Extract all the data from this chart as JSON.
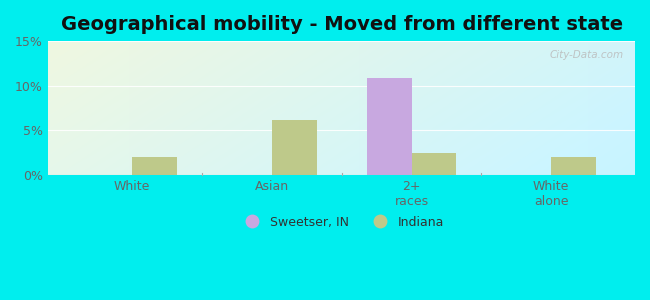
{
  "title": "Geographical mobility - Moved from different state",
  "categories": [
    "White",
    "Asian",
    "2+\nraces",
    "White\nalone"
  ],
  "sweetser_values": [
    0.0,
    0.0,
    10.9,
    0.0
  ],
  "indiana_values": [
    2.0,
    6.2,
    2.5,
    2.0
  ],
  "sweetser_color": "#c8a8e0",
  "indiana_color": "#bec98a",
  "ylim": [
    0,
    15
  ],
  "yticks": [
    0,
    5,
    10,
    15
  ],
  "yticklabels": [
    "0%",
    "5%",
    "10%",
    "15%"
  ],
  "bar_width": 0.32,
  "background_outer": "#00eeee",
  "title_fontsize": 14,
  "legend_label_sweetser": "Sweetser, IN",
  "legend_label_indiana": "Indiana",
  "watermark": "City-Data.com",
  "grid_color": "#e0e8e0",
  "tick_color": "#666666"
}
